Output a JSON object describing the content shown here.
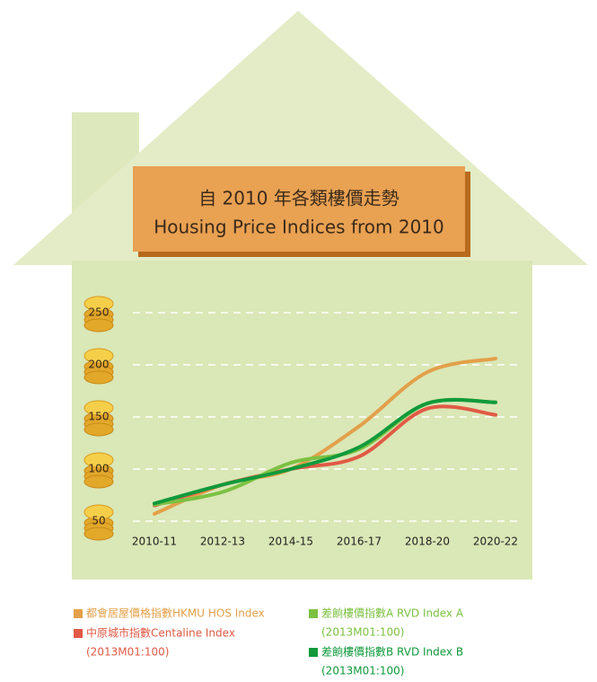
{
  "chart_data": {
    "type": "line",
    "title": "自 2010 年各類樓價走勢",
    "subtitle": "Housing Price Indices from 2010",
    "categories": [
      "2010-11",
      "2012-13",
      "2014-15",
      "2016-17",
      "2018-20",
      "2020-22"
    ],
    "series": [
      {
        "name": "都會居屋價格指數HKMU HOS Index",
        "color": "#e3a04a",
        "values": [
          57,
          85,
          100,
          141,
          193,
          206
        ]
      },
      {
        "name": "中原城市指數Centaline Index",
        "color": "#e05a45",
        "base": "(2013M01:100)",
        "values": [
          65,
          85,
          100,
          112,
          158,
          152
        ]
      },
      {
        "name": "差餉樓價指數A RVD Index A",
        "color": "#7cc142",
        "base": "(2013M01:100)",
        "values": [
          66,
          78,
          106,
          119,
          163,
          164
        ]
      },
      {
        "name": "差餉樓價指數B RVD Index B",
        "color": "#109a3c",
        "base": "(2013M01:100)",
        "values": [
          67,
          85,
          100,
          121,
          163,
          164
        ]
      }
    ],
    "ylim": [
      50,
      250
    ],
    "yticks": [
      50,
      100,
      150,
      200,
      250
    ],
    "grid": true
  }
}
